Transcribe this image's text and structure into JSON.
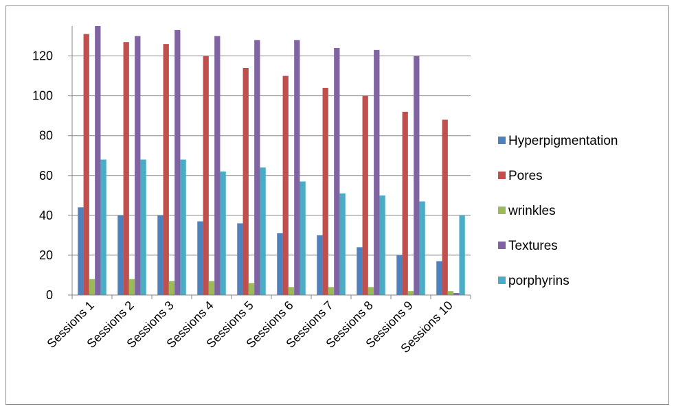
{
  "chart_data": {
    "type": "bar",
    "categories": [
      "Sessions 1",
      "Sessions 2",
      "Sessions 3",
      "Sessions 4",
      "Sessions 5",
      "Sessions 6",
      "Sessions 7",
      "Sessions 8",
      "Sessions 9",
      "Sessions 10"
    ],
    "series": [
      {
        "name": "Hyperpigmentation",
        "color": "#4f81bd",
        "values": [
          44,
          40,
          40,
          37,
          36,
          31,
          30,
          24,
          20,
          17
        ]
      },
      {
        "name": "Pores",
        "color": "#c0504d",
        "values": [
          131,
          127,
          126,
          120,
          114,
          110,
          104,
          100,
          92,
          88
        ]
      },
      {
        "name": "wrinkles",
        "color": "#9bbb59",
        "values": [
          8,
          8,
          7,
          7,
          6,
          4,
          4,
          4,
          2,
          2
        ]
      },
      {
        "name": "Textures",
        "color": "#8064a2",
        "values": [
          135,
          130,
          133,
          130,
          128,
          128,
          124,
          123,
          120,
          1
        ]
      },
      {
        "name": "porphyrins",
        "color": "#4bacc6",
        "values": [
          68,
          68,
          68,
          62,
          64,
          57,
          51,
          50,
          47,
          40
        ]
      }
    ],
    "y_ticks": [
      "0",
      "20",
      "40",
      "60",
      "80",
      "100",
      "120"
    ],
    "ylim": [
      0,
      135
    ],
    "grid": true,
    "legend_position": "right",
    "title": "",
    "xlabel": "",
    "ylabel": ""
  }
}
